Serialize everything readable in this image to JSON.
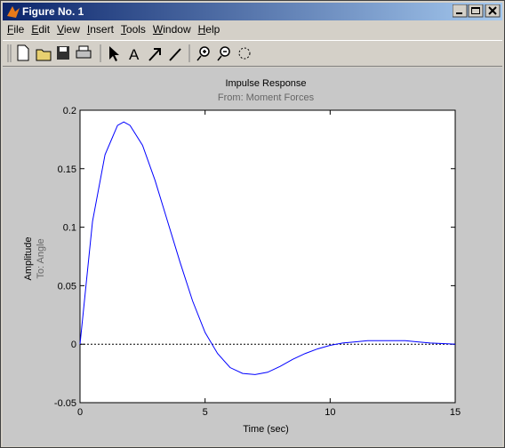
{
  "window": {
    "title": "Figure No. 1",
    "menu": [
      "File",
      "Edit",
      "View",
      "Insert",
      "Tools",
      "Window",
      "Help"
    ]
  },
  "chart_data": {
    "type": "line",
    "title": "Impulse Response",
    "subtitle": "From: Moment Forces",
    "xlabel": "Time (sec)",
    "ylabel": "Amplitude",
    "output_label": "To: Angle",
    "x": [
      0,
      0.5,
      1,
      1.5,
      1.75,
      2,
      2.5,
      3,
      3.5,
      4,
      4.5,
      5,
      5.5,
      6,
      6.5,
      7,
      7.5,
      8,
      8.5,
      9,
      9.5,
      10,
      10.5,
      11,
      11.5,
      12,
      12.5,
      13,
      13.5,
      14,
      14.5,
      15
    ],
    "series": [
      {
        "color": "#0000ff",
        "values": [
          0,
          0.105,
          0.162,
          0.187,
          0.19,
          0.187,
          0.17,
          0.14,
          0.105,
          0.07,
          0.037,
          0.01,
          -0.008,
          -0.02,
          -0.025,
          -0.026,
          -0.024,
          -0.019,
          -0.013,
          -0.008,
          -0.004,
          -0.001,
          0.001,
          0.002,
          0.003,
          0.003,
          0.003,
          0.003,
          0.002,
          0.001,
          0.0005,
          0
        ]
      }
    ],
    "xlim": [
      0,
      15
    ],
    "xticks": [
      0,
      5,
      10,
      15
    ],
    "ylim": [
      -0.05,
      0.2
    ],
    "yticks": [
      -0.05,
      0,
      0.05,
      0.1,
      0.15,
      0.2
    ]
  }
}
